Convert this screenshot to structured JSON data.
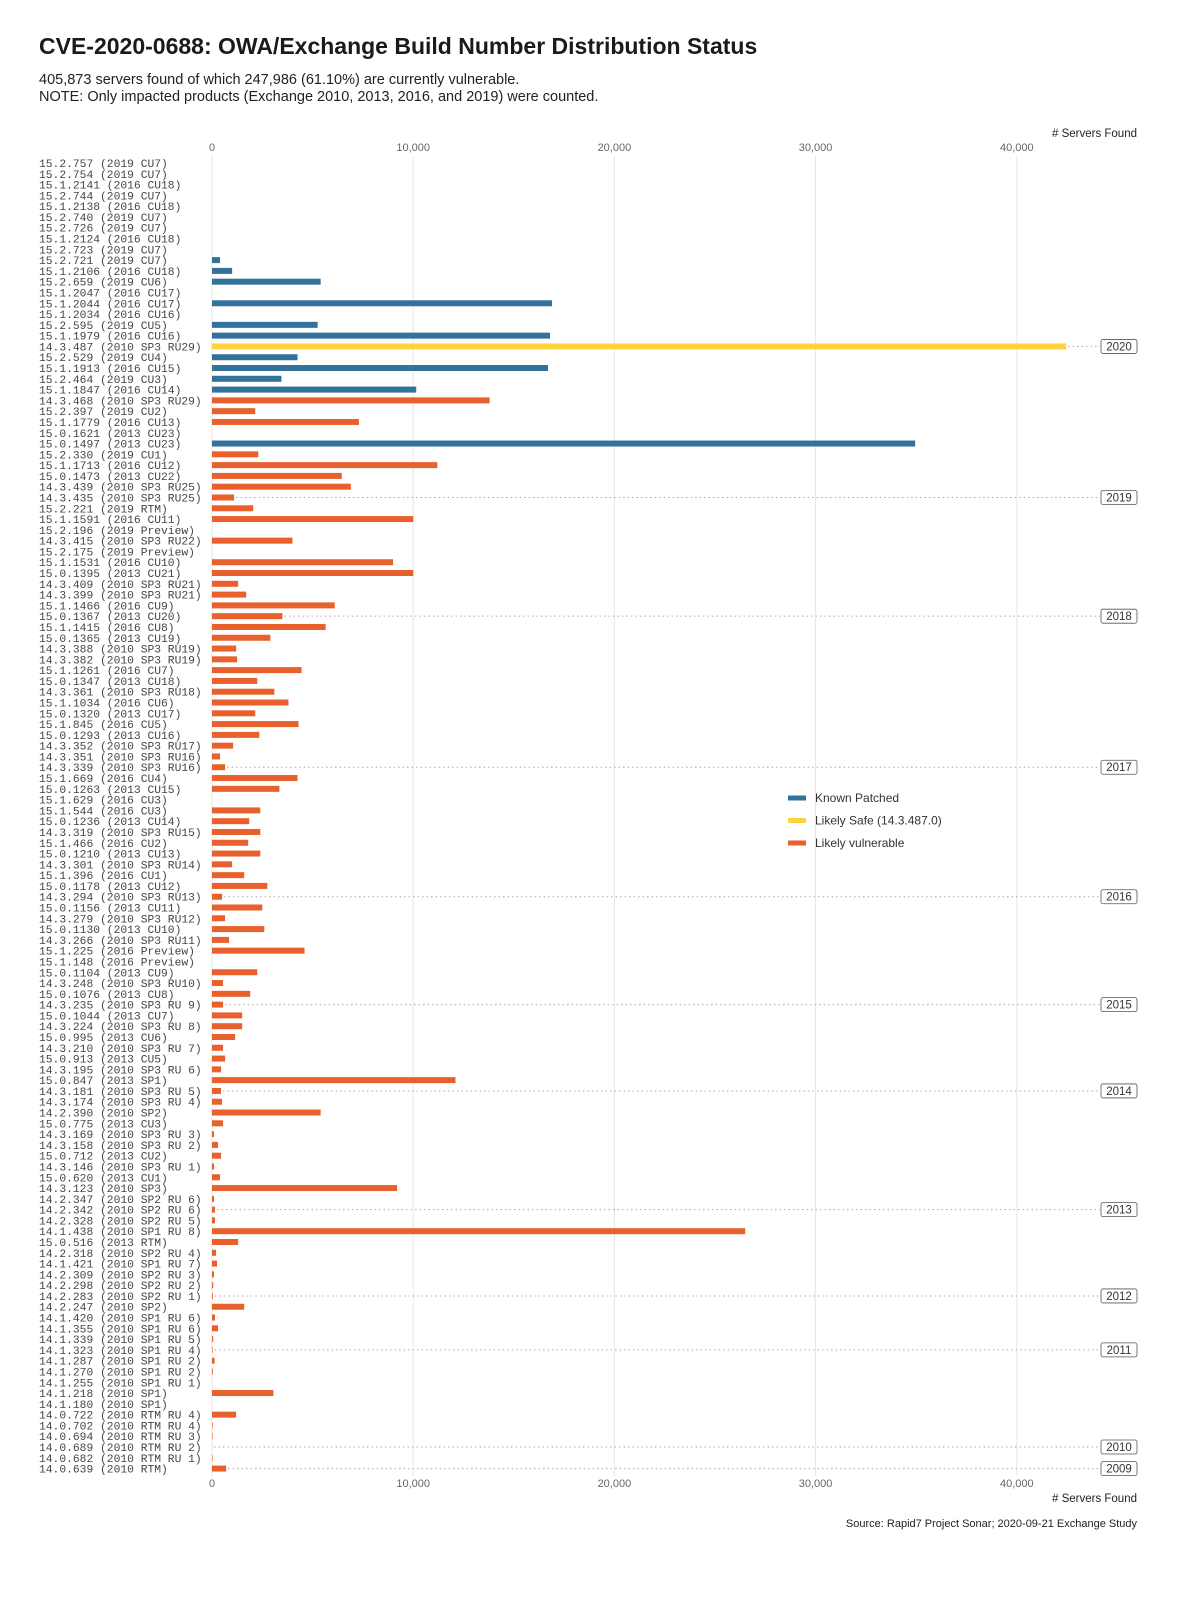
{
  "title": "CVE-2020-0688: OWA/Exchange Build Number Distribution Status",
  "subtitle_1": "405,873 servers found of which 247,986 (61.10%) are currently vulnerable.",
  "subtitle_2": "NOTE: Only impacted products (Exchange 2010, 2013, 2016, and 2019) were counted.",
  "source": "Source: Rapid7 Project Sonar; 2020-09-21 Exchange Study",
  "chart_data": {
    "type": "bar",
    "orientation": "horizontal",
    "xlabel": "# Servers Found",
    "xlim": [
      0,
      44000
    ],
    "x_ticks": [
      0,
      10000,
      20000,
      30000,
      40000
    ],
    "x_tick_labels": [
      "0",
      "10,000",
      "20,000",
      "30,000",
      "40,000"
    ],
    "grid": true,
    "legend_position": "right",
    "legend": [
      {
        "key": "patched",
        "name": "Known Patched",
        "color": "#33729b"
      },
      {
        "key": "safe",
        "name": "Likely Safe (14.3.487.0)",
        "color": "#fdd23c"
      },
      {
        "key": "vuln",
        "name": "Likely vulnerable",
        "color": "#e8602b"
      }
    ],
    "rows": [
      {
        "label": "15.2.757 (2019 CU7)",
        "value": 0,
        "status": "patched"
      },
      {
        "label": "15.2.754 (2019 CU7)",
        "value": 0,
        "status": "patched"
      },
      {
        "label": "15.1.2141 (2016 CU18)",
        "value": 0,
        "status": "patched"
      },
      {
        "label": "15.2.744 (2019 CU7)",
        "value": 0,
        "status": "patched"
      },
      {
        "label": "15.1.2138 (2016 CU18)",
        "value": 0,
        "status": "patched"
      },
      {
        "label": "15.2.740 (2019 CU7)",
        "value": 0,
        "status": "patched"
      },
      {
        "label": "15.2.726 (2019 CU7)",
        "value": 0,
        "status": "patched"
      },
      {
        "label": "15.1.2124 (2016 CU18)",
        "value": 0,
        "status": "patched"
      },
      {
        "label": "15.2.723 (2019 CU7)",
        "value": 0,
        "status": "patched"
      },
      {
        "label": "15.2.721 (2019 CU7)",
        "value": 400,
        "status": "patched"
      },
      {
        "label": "15.1.2106 (2016 CU18)",
        "value": 1000,
        "status": "patched"
      },
      {
        "label": "15.2.659 (2019 CU6)",
        "value": 5400,
        "status": "patched"
      },
      {
        "label": "15.1.2047 (2016 CU17)",
        "value": 0,
        "status": "patched"
      },
      {
        "label": "15.1.2044 (2016 CU17)",
        "value": 16900,
        "status": "patched"
      },
      {
        "label": "15.1.2034 (2016 CU16)",
        "value": 0,
        "status": "patched"
      },
      {
        "label": "15.2.595 (2019 CU5)",
        "value": 5250,
        "status": "patched"
      },
      {
        "label": "15.1.1979 (2016 CU16)",
        "value": 16800,
        "status": "patched"
      },
      {
        "label": "14.3.487 (2010 SP3 RU29)",
        "value": 42450,
        "status": "safe"
      },
      {
        "label": "15.2.529 (2019 CU4)",
        "value": 4250,
        "status": "patched"
      },
      {
        "label": "15.1.1913 (2016 CU15)",
        "value": 16700,
        "status": "patched"
      },
      {
        "label": "15.2.464 (2019 CU3)",
        "value": 3450,
        "status": "patched"
      },
      {
        "label": "15.1.1847 (2016 CU14)",
        "value": 10150,
        "status": "patched"
      },
      {
        "label": "14.3.468 (2010 SP3 RU29)",
        "value": 13800,
        "status": "vuln"
      },
      {
        "label": "15.2.397 (2019 CU2)",
        "value": 2150,
        "status": "vuln"
      },
      {
        "label": "15.1.1779 (2016 CU13)",
        "value": 7300,
        "status": "vuln"
      },
      {
        "label": "15.0.1621 (2013 CU23)",
        "value": 0,
        "status": "patched"
      },
      {
        "label": "15.0.1497 (2013 CU23)",
        "value": 34950,
        "status": "patched"
      },
      {
        "label": "15.2.330 (2019 CU1)",
        "value": 2300,
        "status": "vuln"
      },
      {
        "label": "15.1.1713 (2016 CU12)",
        "value": 11200,
        "status": "vuln"
      },
      {
        "label": "15.0.1473 (2013 CU22)",
        "value": 6450,
        "status": "vuln"
      },
      {
        "label": "14.3.439 (2010 SP3 RU25)",
        "value": 6900,
        "status": "vuln"
      },
      {
        "label": "14.3.435 (2010 SP3 RU25)",
        "value": 1100,
        "status": "vuln",
        "year_marker": "2019"
      },
      {
        "label": "15.2.221 (2019 RTM)",
        "value": 2050,
        "status": "vuln"
      },
      {
        "label": "15.1.1591 (2016 CU11)",
        "value": 10000,
        "status": "vuln"
      },
      {
        "label": "15.2.196 (2019 Preview)",
        "value": 0,
        "status": "vuln"
      },
      {
        "label": "14.3.415 (2010 SP3 RU22)",
        "value": 4000,
        "status": "vuln"
      },
      {
        "label": "15.2.175 (2019 Preview)",
        "value": 0,
        "status": "vuln"
      },
      {
        "label": "15.1.1531 (2016 CU10)",
        "value": 9000,
        "status": "vuln"
      },
      {
        "label": "15.0.1395 (2013 CU21)",
        "value": 10000,
        "status": "vuln"
      },
      {
        "label": "14.3.409 (2010 SP3 RU21)",
        "value": 1300,
        "status": "vuln"
      },
      {
        "label": "14.3.399 (2010 SP3 RU21)",
        "value": 1700,
        "status": "vuln"
      },
      {
        "label": "15.1.1466 (2016 CU9)",
        "value": 6100,
        "status": "vuln"
      },
      {
        "label": "15.0.1367 (2013 CU20)",
        "value": 3500,
        "status": "vuln",
        "year_marker": "2018"
      },
      {
        "label": "15.1.1415 (2016 CU8)",
        "value": 5650,
        "status": "vuln"
      },
      {
        "label": "15.0.1365 (2013 CU19)",
        "value": 2900,
        "status": "vuln"
      },
      {
        "label": "14.3.388 (2010 SP3 RU19)",
        "value": 1200,
        "status": "vuln"
      },
      {
        "label": "14.3.382 (2010 SP3 RU19)",
        "value": 1250,
        "status": "vuln"
      },
      {
        "label": "15.1.1261 (2016 CU7)",
        "value": 4450,
        "status": "vuln"
      },
      {
        "label": "15.0.1347 (2013 CU18)",
        "value": 2250,
        "status": "vuln"
      },
      {
        "label": "14.3.361 (2010 SP3 RU18)",
        "value": 3100,
        "status": "vuln"
      },
      {
        "label": "15.1.1034 (2016 CU6)",
        "value": 3800,
        "status": "vuln"
      },
      {
        "label": "15.0.1320 (2013 CU17)",
        "value": 2150,
        "status": "vuln"
      },
      {
        "label": "15.1.845 (2016 CU5)",
        "value": 4300,
        "status": "vuln"
      },
      {
        "label": "15.0.1293 (2013 CU16)",
        "value": 2350,
        "status": "vuln"
      },
      {
        "label": "14.3.352 (2010 SP3 RU17)",
        "value": 1050,
        "status": "vuln"
      },
      {
        "label": "14.3.351 (2010 SP3 RU16)",
        "value": 400,
        "status": "vuln"
      },
      {
        "label": "14.3.339 (2010 SP3 RU16)",
        "value": 650,
        "status": "vuln",
        "year_marker": "2017"
      },
      {
        "label": "15.1.669 (2016 CU4)",
        "value": 4250,
        "status": "vuln"
      },
      {
        "label": "15.0.1263 (2013 CU15)",
        "value": 3350,
        "status": "vuln"
      },
      {
        "label": "15.1.629 (2016 CU3)",
        "value": 0,
        "status": "vuln"
      },
      {
        "label": "15.1.544 (2016 CU3)",
        "value": 2400,
        "status": "vuln"
      },
      {
        "label": "15.0.1236 (2013 CU14)",
        "value": 1850,
        "status": "vuln"
      },
      {
        "label": "14.3.319 (2010 SP3 RU15)",
        "value": 2400,
        "status": "vuln"
      },
      {
        "label": "15.1.466 (2016 CU2)",
        "value": 1800,
        "status": "vuln"
      },
      {
        "label": "15.0.1210 (2013 CU13)",
        "value": 2400,
        "status": "vuln"
      },
      {
        "label": "14.3.301 (2010 SP3 RU14)",
        "value": 1000,
        "status": "vuln"
      },
      {
        "label": "15.1.396 (2016 CU1)",
        "value": 1600,
        "status": "vuln"
      },
      {
        "label": "15.0.1178 (2013 CU12)",
        "value": 2750,
        "status": "vuln"
      },
      {
        "label": "14.3.294 (2010 SP3 RU13)",
        "value": 500,
        "status": "vuln",
        "year_marker": "2016"
      },
      {
        "label": "15.0.1156 (2013 CU11)",
        "value": 2500,
        "status": "vuln"
      },
      {
        "label": "14.3.279 (2010 SP3 RU12)",
        "value": 650,
        "status": "vuln"
      },
      {
        "label": "15.0.1130 (2013 CU10)",
        "value": 2600,
        "status": "vuln"
      },
      {
        "label": "14.3.266 (2010 SP3 RU11)",
        "value": 850,
        "status": "vuln"
      },
      {
        "label": "15.1.225 (2016 Preview)",
        "value": 4600,
        "status": "vuln"
      },
      {
        "label": "15.1.148 (2016 Preview)",
        "value": 0,
        "status": "vuln"
      },
      {
        "label": "15.0.1104 (2013 CU9)",
        "value": 2250,
        "status": "vuln"
      },
      {
        "label": "14.3.248 (2010 SP3 RU10)",
        "value": 550,
        "status": "vuln"
      },
      {
        "label": "15.0.1076 (2013 CU8)",
        "value": 1900,
        "status": "vuln"
      },
      {
        "label": "14.3.235 (2010 SP3 RU 9)",
        "value": 550,
        "status": "vuln",
        "year_marker": "2015"
      },
      {
        "label": "15.0.1044 (2013 CU7)",
        "value": 1500,
        "status": "vuln"
      },
      {
        "label": "14.3.224 (2010 SP3 RU 8)",
        "value": 1500,
        "status": "vuln"
      },
      {
        "label": "15.0.995 (2013 CU6)",
        "value": 1150,
        "status": "vuln"
      },
      {
        "label": "14.3.210 (2010 SP3 RU 7)",
        "value": 550,
        "status": "vuln"
      },
      {
        "label": "15.0.913 (2013 CU5)",
        "value": 650,
        "status": "vuln"
      },
      {
        "label": "14.3.195 (2010 SP3 RU 6)",
        "value": 450,
        "status": "vuln"
      },
      {
        "label": "15.0.847 (2013 SP1)",
        "value": 12100,
        "status": "vuln"
      },
      {
        "label": "14.3.181 (2010 SP3 RU 5)",
        "value": 450,
        "status": "vuln",
        "year_marker": "2014"
      },
      {
        "label": "14.3.174 (2010 SP3 RU 4)",
        "value": 500,
        "status": "vuln"
      },
      {
        "label": "14.2.390 (2010 SP2)",
        "value": 5400,
        "status": "vuln"
      },
      {
        "label": "15.0.775 (2013 CU3)",
        "value": 550,
        "status": "vuln"
      },
      {
        "label": "14.3.169 (2010 SP3 RU 3)",
        "value": 100,
        "status": "vuln"
      },
      {
        "label": "14.3.158 (2010 SP3 RU 2)",
        "value": 300,
        "status": "vuln"
      },
      {
        "label": "15.0.712 (2013 CU2)",
        "value": 450,
        "status": "vuln"
      },
      {
        "label": "14.3.146 (2010 SP3 RU 1)",
        "value": 100,
        "status": "vuln"
      },
      {
        "label": "15.0.620 (2013 CU1)",
        "value": 400,
        "status": "vuln"
      },
      {
        "label": "14.3.123 (2010 SP3)",
        "value": 9200,
        "status": "vuln"
      },
      {
        "label": "14.2.347 (2010 SP2 RU 6)",
        "value": 100,
        "status": "vuln"
      },
      {
        "label": "14.2.342 (2010 SP2 RU 6)",
        "value": 150,
        "status": "vuln",
        "year_marker": "2013"
      },
      {
        "label": "14.2.328 (2010 SP2 RU 5)",
        "value": 150,
        "status": "vuln"
      },
      {
        "label": "14.1.438 (2010 SP1 RU 8)",
        "value": 26500,
        "status": "vuln"
      },
      {
        "label": "15.0.516 (2013 RTM)",
        "value": 1300,
        "status": "vuln"
      },
      {
        "label": "14.2.318 (2010 SP2 RU 4)",
        "value": 200,
        "status": "vuln"
      },
      {
        "label": "14.1.421 (2010 SP1 RU 7)",
        "value": 250,
        "status": "vuln"
      },
      {
        "label": "14.2.309 (2010 SP2 RU 3)",
        "value": 100,
        "status": "vuln"
      },
      {
        "label": "14.2.298 (2010 SP2 RU 2)",
        "value": 60,
        "status": "vuln"
      },
      {
        "label": "14.2.283 (2010 SP2 RU 1)",
        "value": 40,
        "status": "vuln",
        "year_marker": "2012"
      },
      {
        "label": "14.2.247 (2010 SP2)",
        "value": 1600,
        "status": "vuln"
      },
      {
        "label": "14.1.420 (2010 SP1 RU 6)",
        "value": 150,
        "status": "vuln"
      },
      {
        "label": "14.1.355 (2010 SP1 RU 6)",
        "value": 300,
        "status": "vuln"
      },
      {
        "label": "14.1.339 (2010 SP1 RU 5)",
        "value": 60,
        "status": "vuln"
      },
      {
        "label": "14.1.323 (2010 SP1 RU 4)",
        "value": 30,
        "status": "vuln",
        "year_marker": "2011"
      },
      {
        "label": "14.1.287 (2010 SP1 RU 2)",
        "value": 130,
        "status": "vuln"
      },
      {
        "label": "14.1.270 (2010 SP1 RU 2)",
        "value": 40,
        "status": "vuln"
      },
      {
        "label": "14.1.255 (2010 SP1 RU 1)",
        "value": 0,
        "status": "vuln"
      },
      {
        "label": "14.1.218 (2010 SP1)",
        "value": 3050,
        "status": "vuln"
      },
      {
        "label": "14.1.180 (2010 SP1)",
        "value": 0,
        "status": "vuln"
      },
      {
        "label": "14.0.722 (2010 RTM RU 4)",
        "value": 1200,
        "status": "vuln"
      },
      {
        "label": "14.0.702 (2010 RTM RU 4)",
        "value": 30,
        "status": "vuln"
      },
      {
        "label": "14.0.694 (2010 RTM RU 3)",
        "value": 10,
        "status": "vuln"
      },
      {
        "label": "14.0.689 (2010 RTM RU 2)",
        "value": 0,
        "status": "vuln",
        "year_marker": "2010"
      },
      {
        "label": "14.0.682 (2010 RTM RU 1)",
        "value": 20,
        "status": "vuln"
      },
      {
        "label": "14.0.639 (2010 RTM)",
        "value": 700,
        "status": "vuln",
        "year_marker": "2009"
      }
    ],
    "year_marker_top": {
      "row_label": "14.3.487 (2010 SP3 RU29)",
      "year": "2020"
    }
  }
}
